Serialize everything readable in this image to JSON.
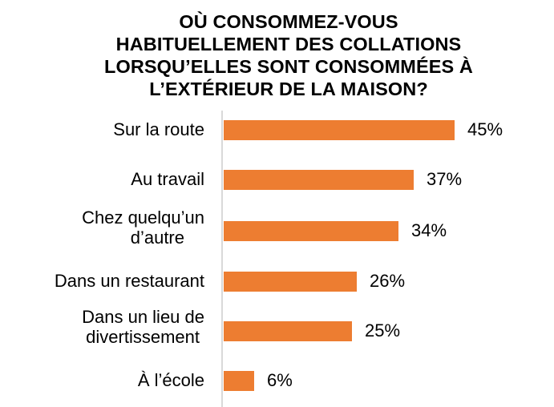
{
  "chart_data": {
    "type": "bar",
    "orientation": "horizontal",
    "title": "OÙ CONSOMMEZ-VOUS HABITUELLEMENT DES COLLATIONS LORSQU’ELLES SONT CONSOMMÉES À L’EXTÉRIEUR DE LA MAISON?",
    "title_lines": [
      "OÙ CONSOMMEZ-VOUS",
      "HABITUELLEMENT DES COLLATIONS",
      "LORSQU’ELLES SONT CONSOMMÉES À",
      "L’EXTÉRIEUR DE LA MAISON?"
    ],
    "categories": [
      "Sur la route",
      "Au travail",
      "Chez quelqu’un d’autre",
      "Dans un restaurant",
      "Dans un lieu de divertissement",
      "À l’école"
    ],
    "category_lines": [
      [
        "Sur la route"
      ],
      [
        "Au travail"
      ],
      [
        "Chez quelqu’un",
        "d’autre"
      ],
      [
        "Dans un restaurant"
      ],
      [
        "Dans un lieu de",
        "divertissement"
      ],
      [
        "À l’école"
      ]
    ],
    "values": [
      45,
      37,
      34,
      26,
      25,
      6
    ],
    "value_labels": [
      "45%",
      "37%",
      "34%",
      "26%",
      "25%",
      "6%"
    ],
    "xlabel": "",
    "ylabel": "",
    "xlim": [
      0,
      50
    ],
    "grid": false,
    "legend": null,
    "bar_color": "#ED7D31",
    "axis_color": "#D9D9D9"
  }
}
